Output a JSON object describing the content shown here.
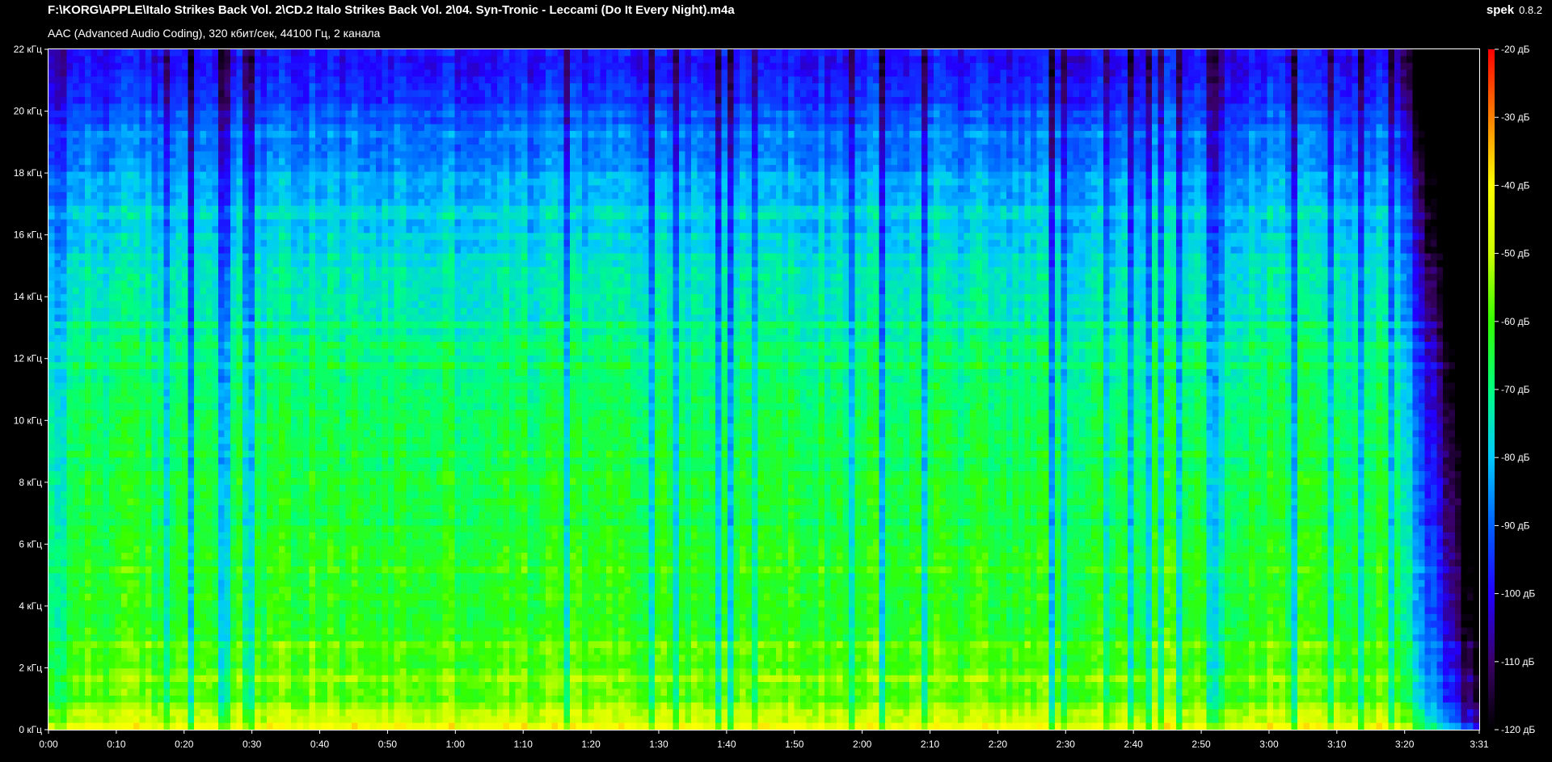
{
  "header": {
    "file_path": "F:\\KORG\\APPLE\\Italo Strikes Back Vol. 2\\CD.2 Italo Strikes Back Vol. 2\\04. Syn-Tronic - Leccami (Do It Every Night).m4a",
    "stream_info": "AAC (Advanced Audio Coding), 320 кбит/сек, 44100 Гц, 2 канала",
    "app_name": "spek",
    "app_version": "0.8.2"
  },
  "chart_data": {
    "type": "heatmap",
    "description_kind": "spectrogram",
    "duration_seconds": 211,
    "x_ticks": [
      "0:00",
      "0:10",
      "0:20",
      "0:30",
      "0:40",
      "0:50",
      "1:00",
      "1:10",
      "1:20",
      "1:30",
      "1:40",
      "1:50",
      "2:00",
      "2:10",
      "2:20",
      "2:30",
      "2:40",
      "2:50",
      "3:00",
      "3:10",
      "3:20",
      "3:31"
    ],
    "x_tick_seconds": [
      0,
      10,
      20,
      30,
      40,
      50,
      60,
      70,
      80,
      90,
      100,
      110,
      120,
      130,
      140,
      150,
      160,
      170,
      180,
      190,
      200,
      211
    ],
    "y_ticks": [
      "0 кГц",
      "2 кГц",
      "4 кГц",
      "6 кГц",
      "8 кГц",
      "10 кГц",
      "12 кГц",
      "14 кГц",
      "16 кГц",
      "18 кГц",
      "20 кГц",
      "22 кГц"
    ],
    "y_tick_khz": [
      0,
      2,
      4,
      6,
      8,
      10,
      12,
      14,
      16,
      18,
      20,
      22
    ],
    "ylim_khz": [
      0,
      22
    ],
    "colorbar_ticks": [
      "-20 дБ",
      "-30 дБ",
      "-40 дБ",
      "-50 дБ",
      "-60 дБ",
      "-70 дБ",
      "-80 дБ",
      "-90 дБ",
      "-100 дБ",
      "-110 дБ",
      "-120 дБ"
    ],
    "colorbar_db": [
      -20,
      -30,
      -40,
      -50,
      -60,
      -70,
      -80,
      -90,
      -100,
      -110,
      -120
    ],
    "colorbar_range_db": [
      -120,
      -20
    ],
    "colormap_stops": [
      "#000000",
      "#3a0066",
      "#2200ff",
      "#0060ff",
      "#00c8ff",
      "#00ff80",
      "#33ff00",
      "#ccff00",
      "#ffff00",
      "#ff8000",
      "#ff0000"
    ],
    "energy_profile": [
      {
        "khz": 0,
        "db": -45
      },
      {
        "khz": 1,
        "db": -58
      },
      {
        "khz": 3,
        "db": -62
      },
      {
        "khz": 6,
        "db": -64
      },
      {
        "khz": 9,
        "db": -66
      },
      {
        "khz": 12,
        "db": -70
      },
      {
        "khz": 15,
        "db": -76
      },
      {
        "khz": 18,
        "db": -84
      },
      {
        "khz": 20,
        "db": -92
      },
      {
        "khz": 22,
        "db": -102
      }
    ],
    "fade_out_start_seconds": 198
  }
}
